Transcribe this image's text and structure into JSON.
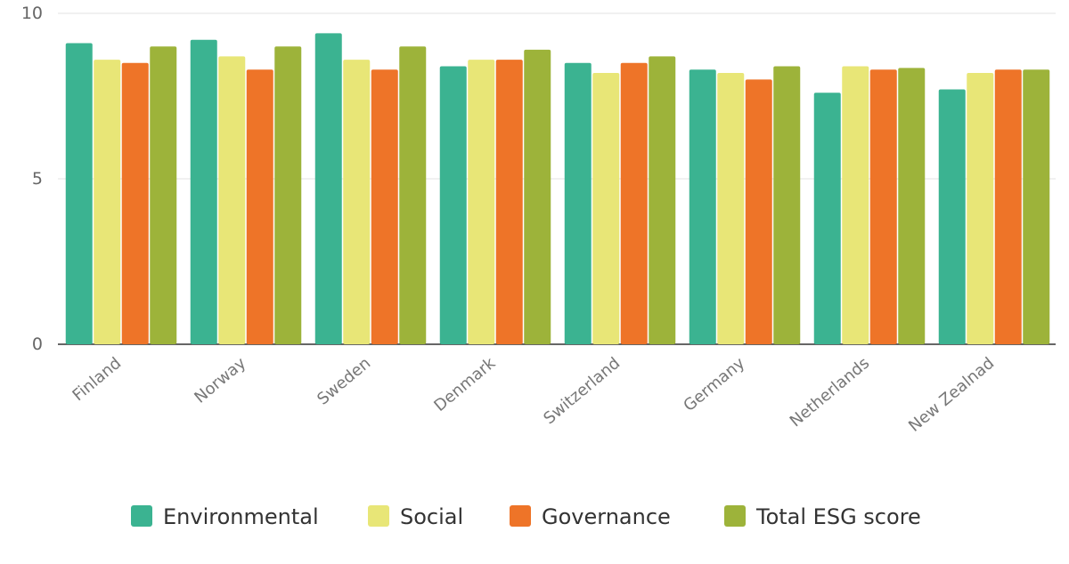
{
  "chart_data": {
    "type": "bar",
    "title": "",
    "xlabel": "",
    "ylabel": "",
    "ylim": [
      0,
      10
    ],
    "yticks": [
      "0",
      "5",
      "10"
    ],
    "grid": true,
    "legend_position": "bottom",
    "categories": [
      "Finland",
      "Norway",
      "Sweden",
      "Denmark",
      "Switzerland",
      "Germany",
      "Netherlands",
      "New Zealnad"
    ],
    "series": [
      {
        "name": "Environmental",
        "color": "#3bb391",
        "values": [
          9.1,
          9.2,
          9.4,
          8.4,
          8.5,
          8.3,
          7.6,
          7.7
        ]
      },
      {
        "name": "Social",
        "color": "#e8e677",
        "values": [
          8.6,
          8.7,
          8.6,
          8.6,
          8.2,
          8.2,
          8.4,
          8.2
        ]
      },
      {
        "name": "Governance",
        "color": "#ee7428",
        "values": [
          8.5,
          8.3,
          8.3,
          8.6,
          8.5,
          8.0,
          8.3,
          8.3
        ]
      },
      {
        "name": "Total ESG score",
        "color": "#9db33a",
        "values": [
          9.0,
          9.0,
          9.0,
          8.9,
          8.7,
          8.4,
          8.35,
          8.3
        ]
      }
    ]
  }
}
